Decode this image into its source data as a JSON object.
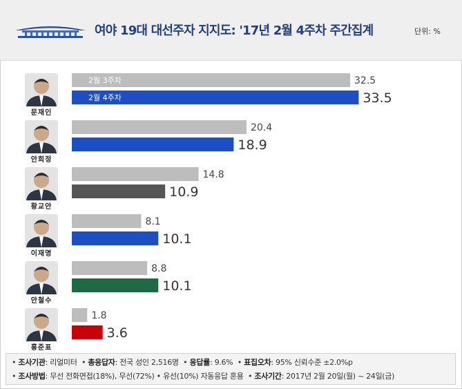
{
  "header": {
    "title": "여야 19대 대선주자 지지도: '17년 2월 4주차 주간집계",
    "unit": "단위: %"
  },
  "colors": {
    "previous_week": "#bdbdbd",
    "democratic": "#1d4fc4",
    "liberty": "#555555",
    "people": "#1e6a44",
    "hong": "#c8000a",
    "title": "#1f3e86"
  },
  "chart_data": {
    "type": "bar",
    "orientation": "horizontal",
    "categories": [
      "문재인",
      "안희정",
      "황교안",
      "이재명",
      "안철수",
      "홍준표"
    ],
    "series": [
      {
        "name": "2월 3주차",
        "values": [
          32.5,
          20.4,
          14.8,
          8.1,
          8.8,
          1.8
        ]
      },
      {
        "name": "2월 4주차",
        "values": [
          33.5,
          18.9,
          10.9,
          10.1,
          10.1,
          3.6
        ]
      }
    ],
    "bar_colors_current_week": [
      "democratic",
      "democratic",
      "liberty",
      "democratic",
      "people",
      "hong"
    ],
    "value_labels_previous": [
      "32.5",
      "20.4",
      "14.8",
      "8.1",
      "8.8",
      "1.8"
    ],
    "value_labels_current": [
      "33.5",
      "18.9",
      "10.9",
      "10.1",
      "10.1",
      "3.6"
    ],
    "xlim": [
      0,
      35
    ],
    "grid": false,
    "legend": "inside-first-bars"
  },
  "footer": {
    "line1": [
      {
        "label": "조사기관",
        "value": ": 리얼미터"
      },
      {
        "label": "총응답자",
        "value": ": 전국 성인 2,516명"
      },
      {
        "label": "응답률",
        "value": ": 9.6%"
      },
      {
        "label": "표집오차",
        "value": ": 95% 신뢰수준 ±2.0%p"
      }
    ],
    "line2": [
      {
        "label": "조사방법",
        "value": ": 무선 전화면접(18%), 무선(72%) • 유선(10%) 자동응답 혼용"
      },
      {
        "label": "조사기간",
        "value": ": 2017년 2월 20일(월) ~ 24일(금)"
      }
    ]
  }
}
